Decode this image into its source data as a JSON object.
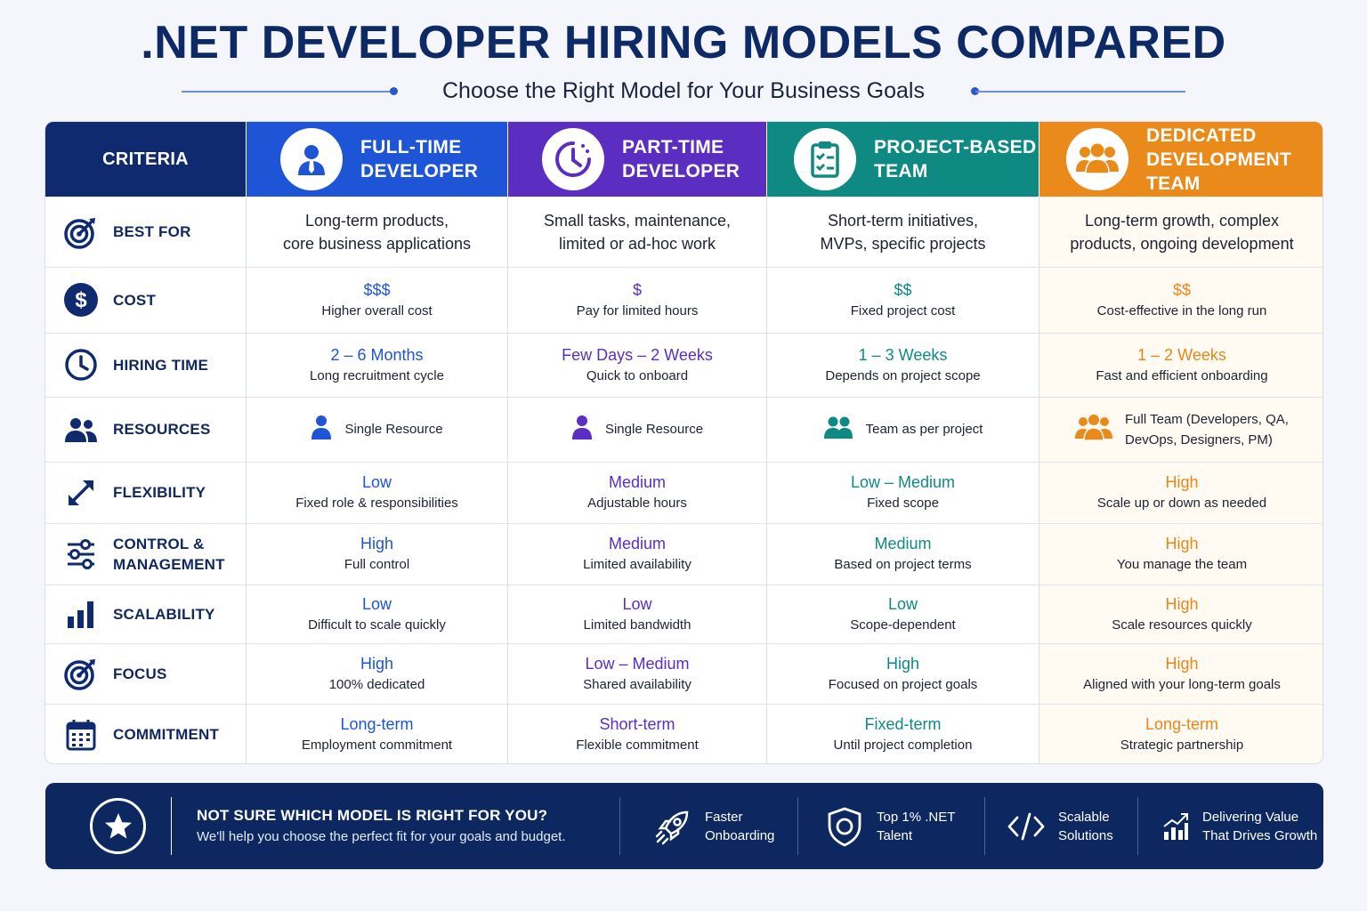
{
  "header": {
    "title": ".NET DEVELOPER HIRING MODELS COMPARED",
    "subtitle": "Choose the Right Model for Your Business Goals"
  },
  "table": {
    "criteria_header": "CRITERIA",
    "columns": [
      {
        "line1": "FULL-TIME",
        "line2": "DEVELOPER",
        "icon": "person-icon",
        "color": "#1d55d6"
      },
      {
        "line1": "PART-TIME",
        "line2": "DEVELOPER",
        "icon": "clock-icon",
        "color": "#5b2dc0"
      },
      {
        "line1": "PROJECT-BASED",
        "line2": "TEAM",
        "icon": "clipboard-icon",
        "color": "#0e8a83"
      },
      {
        "line1": "DEDICATED",
        "line2": "DEVELOPMENT TEAM",
        "icon": "team-icon",
        "color": "#ea8a1a"
      }
    ],
    "rows": {
      "best_for": {
        "label": "BEST FOR",
        "icon": "target-icon",
        "cells": [
          {
            "l1": "Long-term products,",
            "l2": "core business applications"
          },
          {
            "l1": "Small tasks, maintenance,",
            "l2": "limited or ad-hoc work"
          },
          {
            "l1": "Short-term initiatives,",
            "l2": "MVPs, specific projects"
          },
          {
            "l1": "Long-term growth, complex",
            "l2": "products, ongoing development"
          }
        ]
      },
      "cost": {
        "label": "COST",
        "icon": "dollar-icon",
        "cells": [
          {
            "value": "$$$",
            "sub": "Higher overall cost"
          },
          {
            "value": "$",
            "sub": "Pay for limited hours"
          },
          {
            "value": "$$",
            "sub": "Fixed project cost"
          },
          {
            "value": "$$",
            "sub": "Cost-effective in the long run"
          }
        ]
      },
      "hiring_time": {
        "label": "HIRING TIME",
        "icon": "clock-icon",
        "cells": [
          {
            "value": "2 – 6 Months",
            "sub": "Long recruitment cycle"
          },
          {
            "value": "Few Days – 2 Weeks",
            "sub": "Quick to onboard"
          },
          {
            "value": "1 – 3 Weeks",
            "sub": "Depends on project scope"
          },
          {
            "value": "1 – 2 Weeks",
            "sub": "Fast and efficient onboarding"
          }
        ]
      },
      "resources": {
        "label": "RESOURCES",
        "icon": "people-icon",
        "cells": [
          {
            "l1": "Single Resource",
            "l2": ""
          },
          {
            "l1": "Single Resource",
            "l2": ""
          },
          {
            "l1": "Team as per project",
            "l2": ""
          },
          {
            "l1": "Full Team (Developers, QA,",
            "l2": "DevOps, Designers, PM)"
          }
        ]
      },
      "flexibility": {
        "label": "FLEXIBILITY",
        "icon": "expand-arrows-icon",
        "cells": [
          {
            "value": "Low",
            "sub": "Fixed role & responsibilities"
          },
          {
            "value": "Medium",
            "sub": "Adjustable hours"
          },
          {
            "value": "Low – Medium",
            "sub": "Fixed scope"
          },
          {
            "value": "High",
            "sub": "Scale up or down as needed"
          }
        ]
      },
      "control": {
        "label1": "CONTROL &",
        "label2": "MANAGEMENT",
        "icon": "sliders-icon",
        "cells": [
          {
            "value": "High",
            "sub": "Full control"
          },
          {
            "value": "Medium",
            "sub": "Limited availability"
          },
          {
            "value": "Medium",
            "sub": "Based on project terms"
          },
          {
            "value": "High",
            "sub": "You manage the team"
          }
        ]
      },
      "scalability": {
        "label": "SCALABILITY",
        "icon": "bar-chart-icon",
        "cells": [
          {
            "value": "Low",
            "sub": "Difficult to scale quickly"
          },
          {
            "value": "Low",
            "sub": "Limited bandwidth"
          },
          {
            "value": "Low",
            "sub": "Scope-dependent"
          },
          {
            "value": "High",
            "sub": "Scale resources quickly"
          }
        ]
      },
      "focus": {
        "label": "FOCUS",
        "icon": "target-icon",
        "cells": [
          {
            "value": "High",
            "sub": "100% dedicated"
          },
          {
            "value": "Low – Medium",
            "sub": "Shared availability"
          },
          {
            "value": "High",
            "sub": "Focused on project goals"
          },
          {
            "value": "High",
            "sub": "Aligned with your long-term goals"
          }
        ]
      },
      "commitment": {
        "label": "COMMITMENT",
        "icon": "calendar-icon",
        "cells": [
          {
            "value": "Long-term",
            "sub": "Employment commitment"
          },
          {
            "value": "Short-term",
            "sub": "Flexible commitment"
          },
          {
            "value": "Fixed-term",
            "sub": "Until project completion"
          },
          {
            "value": "Long-term",
            "sub": "Strategic partnership"
          }
        ]
      }
    }
  },
  "banner": {
    "heading": "NOT SURE WHICH MODEL IS RIGHT FOR YOU?",
    "text": "We'll help you choose the perfect fit for your goals and budget.",
    "features": [
      {
        "l1": "Faster",
        "l2": "Onboarding",
        "icon": "rocket-icon"
      },
      {
        "l1": "Top 1% .NET",
        "l2": "Talent",
        "icon": "shield-icon"
      },
      {
        "l1": "Scalable",
        "l2": "Solutions",
        "icon": "code-icon"
      },
      {
        "l1": "Delivering Value",
        "l2": "That Drives Growth",
        "icon": "growth-chart-icon"
      }
    ]
  }
}
